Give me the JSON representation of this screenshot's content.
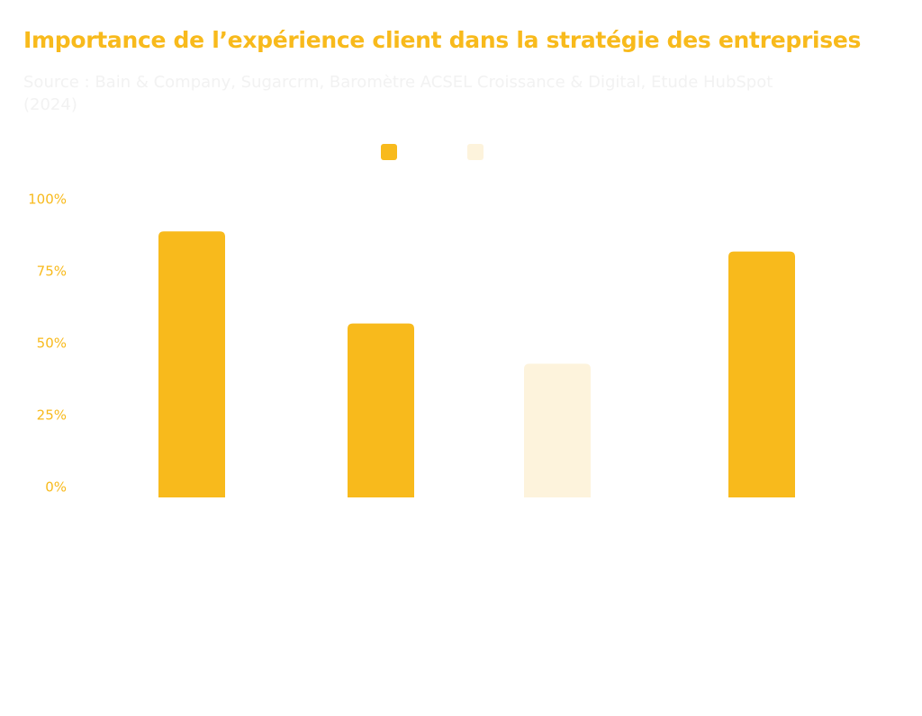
{
  "chart_data": {
    "type": "bar",
    "title": "Importance de l’expérience client dans la stratégie des entreprises",
    "subtitle": "Source : Bain & Company, Sugarcrm, Baromètre ACSEL Croissance & Digital, Etude HubSpot (2024)",
    "xlabel": "",
    "ylabel": "",
    "ylim": [
      0,
      100
    ],
    "yticks": [
      {
        "value": 0,
        "label": "0%"
      },
      {
        "value": 25,
        "label": "25%"
      },
      {
        "value": 50,
        "label": "50%"
      },
      {
        "value": 75,
        "label": "75%"
      },
      {
        "value": 100,
        "label": "100%"
      }
    ],
    "grid": false,
    "legend_position": "top-center",
    "series": [
      {
        "label": "",
        "color": "#F8BA1C"
      },
      {
        "label": "",
        "color": "#FDF3DC"
      }
    ],
    "bars": [
      {
        "category": "",
        "value": 89,
        "series_index": 0
      },
      {
        "category": "",
        "value": 57,
        "series_index": 0
      },
      {
        "category": "",
        "value": 43,
        "series_index": 1
      },
      {
        "category": "",
        "value": 82,
        "series_index": 0
      }
    ],
    "colors": {
      "accent": "#F8BA1C",
      "light": "#FDF3DC",
      "subtitle_text": "#F2F2F2"
    }
  }
}
